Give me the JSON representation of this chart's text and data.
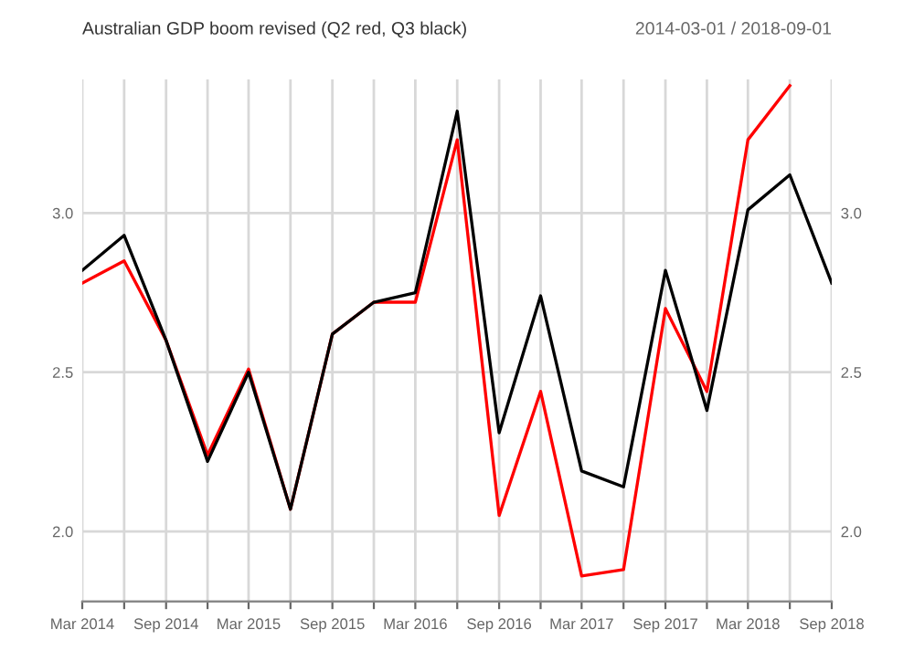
{
  "chart_data": {
    "type": "line",
    "title": "Australian GDP boom revised (Q2 red, Q3 black)",
    "annotations": [
      "2014-03-01 / 2018-09-01"
    ],
    "x": [
      "2014-03-01",
      "2014-06-01",
      "2014-09-01",
      "2014-12-01",
      "2015-03-01",
      "2015-06-01",
      "2015-09-01",
      "2015-12-01",
      "2016-03-01",
      "2016-06-01",
      "2016-09-01",
      "2016-12-01",
      "2017-03-01",
      "2017-06-01",
      "2017-09-01",
      "2017-12-01",
      "2018-03-01",
      "2018-06-01",
      "2018-09-01"
    ],
    "series": [
      {
        "color": "#ff0000",
        "values": [
          2.78,
          2.85,
          2.6,
          2.24,
          2.51,
          2.07,
          2.62,
          2.72,
          2.72,
          3.23,
          2.05,
          2.44,
          1.86,
          1.88,
          2.7,
          2.44,
          3.23,
          3.4,
          null
        ]
      },
      {
        "color": "#000000",
        "values": [
          2.82,
          2.93,
          2.6,
          2.22,
          2.5,
          2.07,
          2.62,
          2.72,
          2.75,
          3.32,
          2.31,
          2.74,
          2.19,
          2.14,
          2.82,
          2.38,
          3.01,
          3.12,
          2.78
        ]
      }
    ],
    "xlim": [
      "2014-03-01",
      "2018-09-01"
    ],
    "xticks": [
      {
        "value": "2014-03-01",
        "label": "Mar 2014"
      },
      {
        "value": "2014-06-01",
        "label": null
      },
      {
        "value": "2014-09-01",
        "label": "Sep 2014"
      },
      {
        "value": "2014-12-01",
        "label": null
      },
      {
        "value": "2015-03-01",
        "label": "Mar 2015"
      },
      {
        "value": "2015-06-01",
        "label": null
      },
      {
        "value": "2015-09-01",
        "label": "Sep 2015"
      },
      {
        "value": "2015-12-01",
        "label": null
      },
      {
        "value": "2016-03-01",
        "label": "Mar 2016"
      },
      {
        "value": "2016-06-01",
        "label": null
      },
      {
        "value": "2016-09-01",
        "label": "Sep 2016"
      },
      {
        "value": "2016-12-01",
        "label": null
      },
      {
        "value": "2017-03-01",
        "label": "Mar 2017"
      },
      {
        "value": "2017-06-01",
        "label": null
      },
      {
        "value": "2017-09-01",
        "label": "Sep 2017"
      },
      {
        "value": "2017-12-01",
        "label": null
      },
      {
        "value": "2018-03-01",
        "label": "Mar 2018"
      },
      {
        "value": "2018-06-01",
        "label": null
      },
      {
        "value": "2018-09-01",
        "label": "Sep 2018"
      }
    ],
    "ylim": [
      1.78,
      3.42
    ],
    "yticks": [
      {
        "value": 2.0,
        "label": "2.0"
      },
      {
        "value": 2.5,
        "label": "2.5"
      },
      {
        "value": 3.0,
        "label": "3.0"
      }
    ],
    "y2lim": [
      1.78,
      3.42
    ],
    "y2ticks": [
      {
        "value": 2.0,
        "label": "2.0"
      },
      {
        "value": 2.5,
        "label": "2.5"
      },
      {
        "value": 3.0,
        "label": "3.0"
      }
    ],
    "grid": true,
    "marker": "none",
    "line_style": "solid"
  }
}
